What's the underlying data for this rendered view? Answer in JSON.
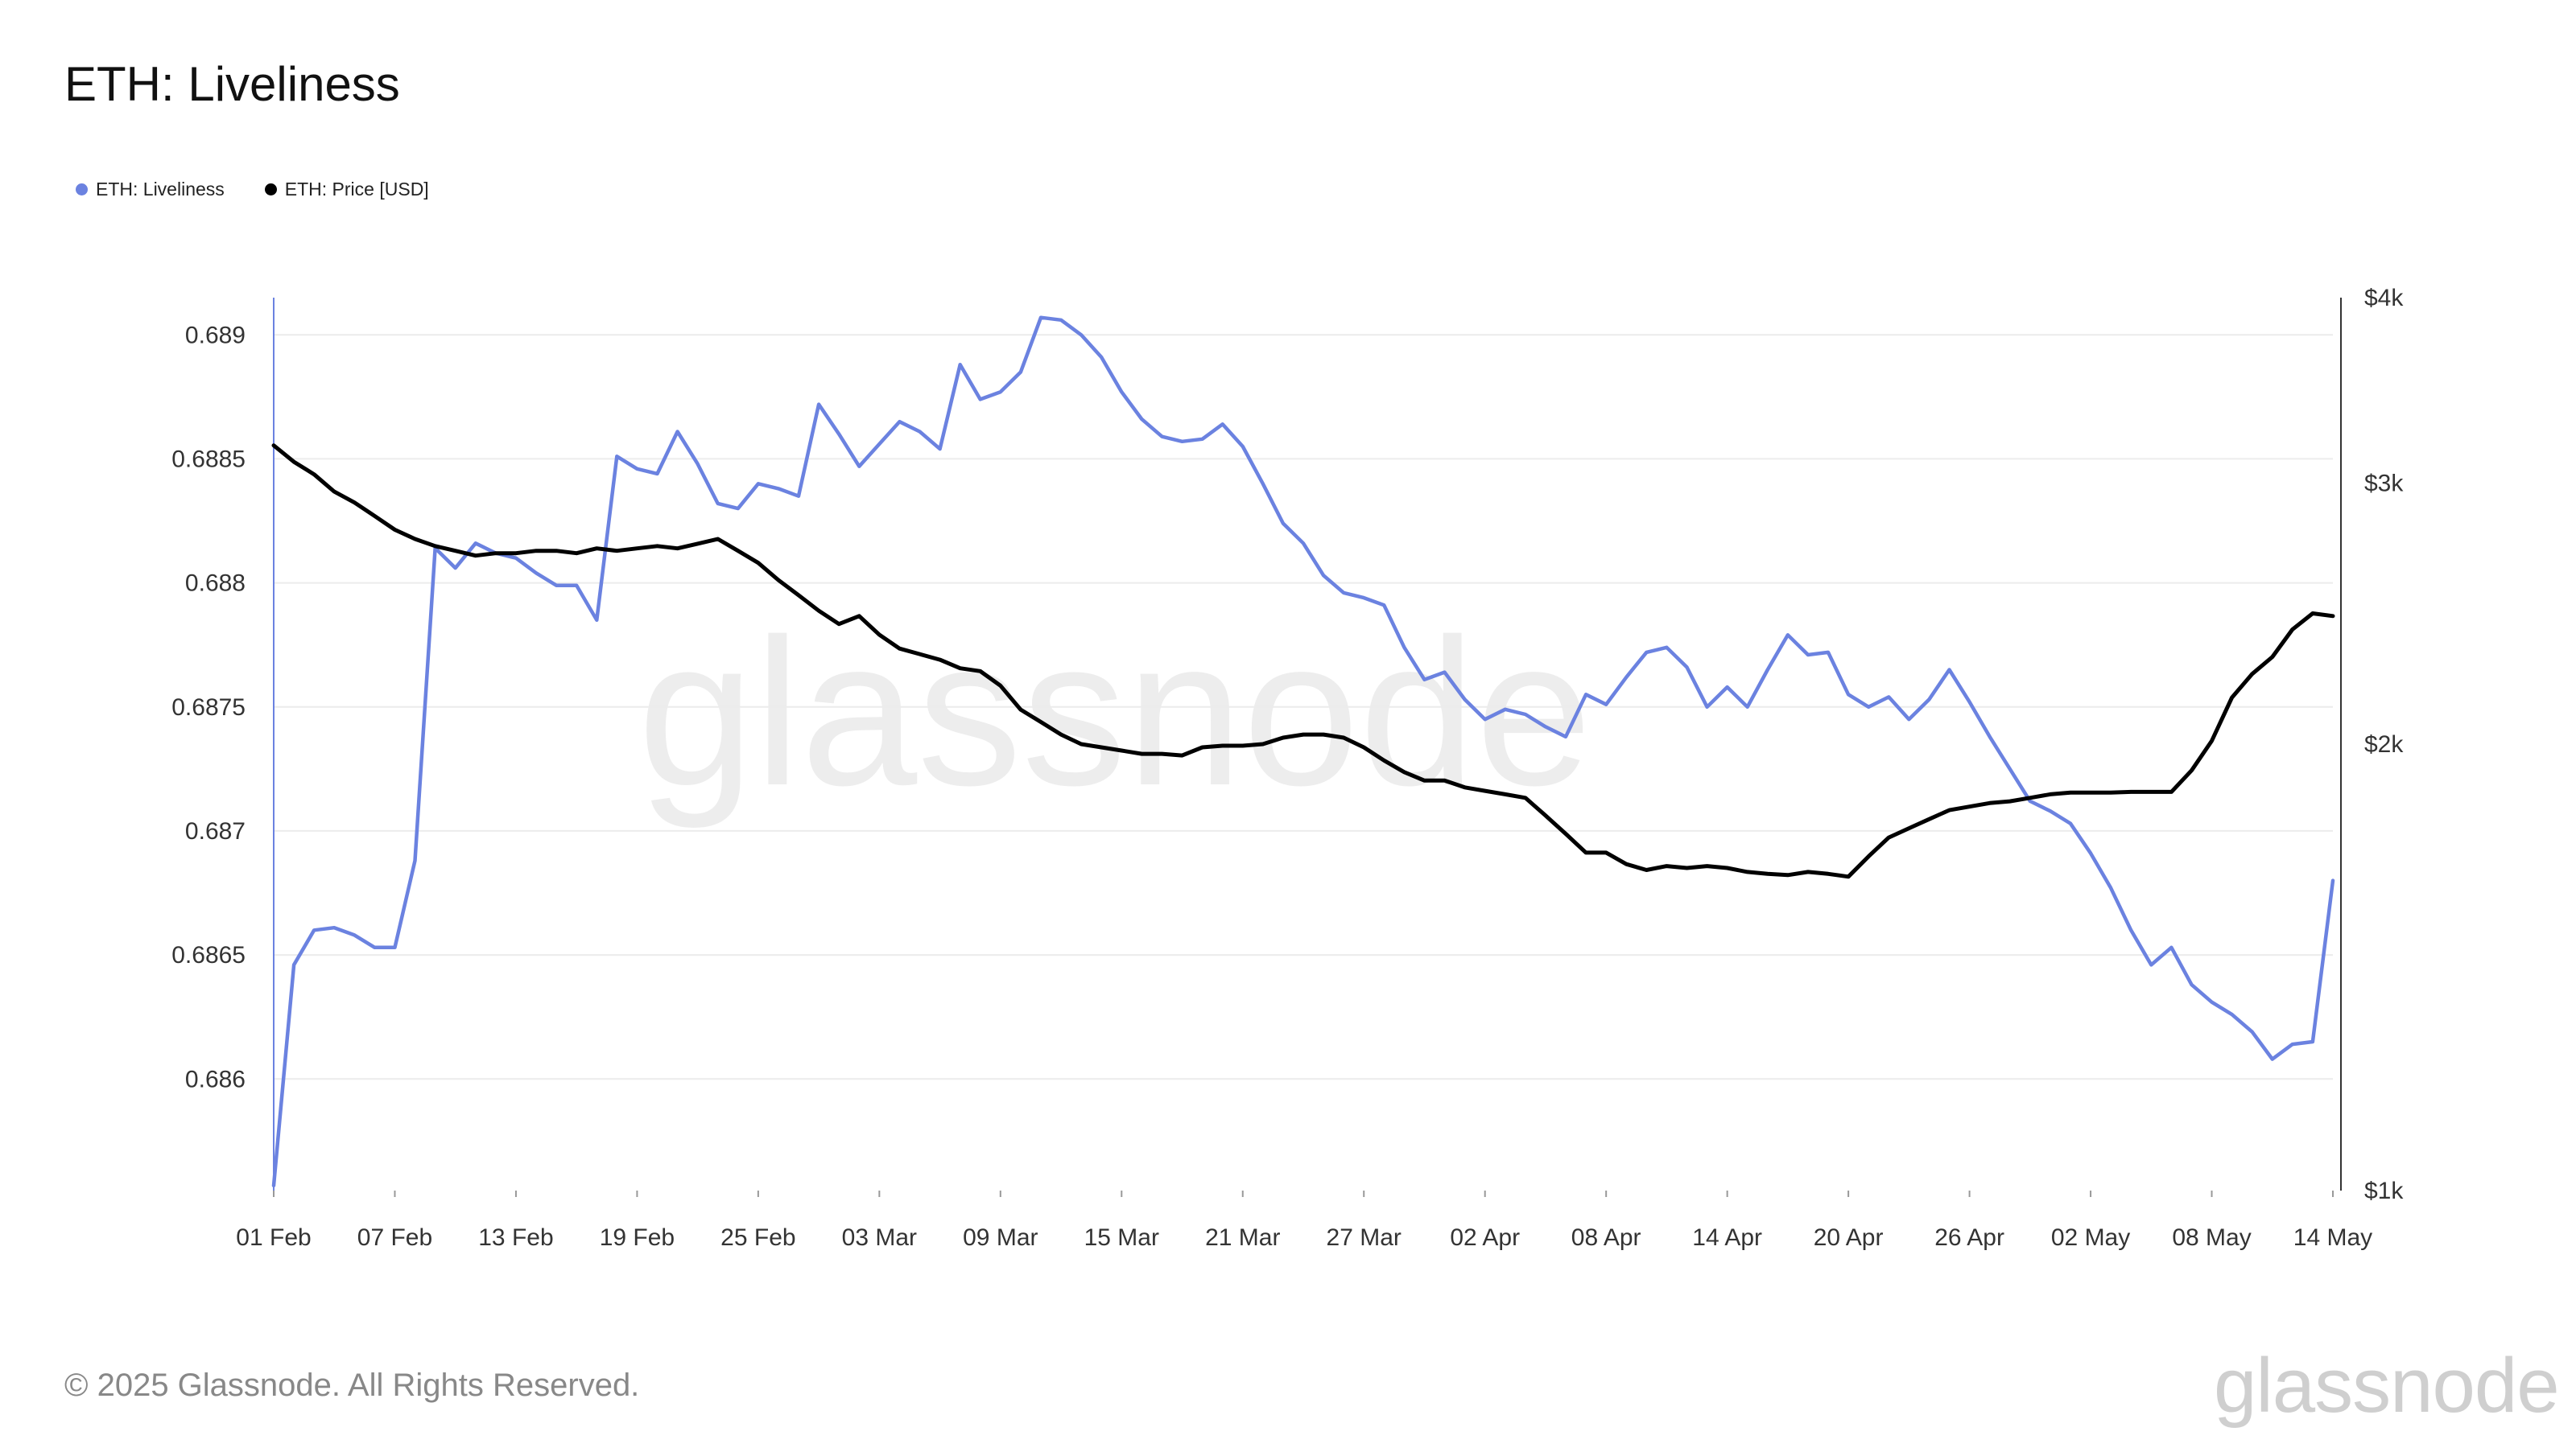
{
  "header": {
    "title": "ETH: Liveliness"
  },
  "legend": [
    {
      "label": "ETH: Liveliness",
      "color": "#6b82e0"
    },
    {
      "label": "ETH: Price [USD]",
      "color": "#000000"
    }
  ],
  "watermark": "glassnode",
  "footer": {
    "copyright": "© 2025 Glassnode. All Rights Reserved.",
    "logo": "glassnode"
  },
  "chart_data": {
    "type": "line",
    "title": "ETH: Liveliness",
    "x_tick_labels": [
      "01 Feb",
      "07 Feb",
      "13 Feb",
      "19 Feb",
      "25 Feb",
      "03 Mar",
      "09 Mar",
      "15 Mar",
      "21 Mar",
      "27 Mar",
      "02 Apr",
      "08 Apr",
      "14 Apr",
      "20 Apr",
      "26 Apr",
      "02 May",
      "08 May",
      "14 May"
    ],
    "x_range_days": [
      0,
      102
    ],
    "y_left": {
      "range": [
        0.68555,
        0.68915
      ],
      "ticks": [
        0.686,
        0.6865,
        0.687,
        0.6875,
        0.688,
        0.6885,
        0.689
      ],
      "tick_labels": [
        "0.686",
        "0.6865",
        "0.687",
        "0.6875",
        "0.688",
        "0.6885",
        "0.689"
      ]
    },
    "y_right": {
      "scale": "log",
      "range": [
        1000,
        4000
      ],
      "ticks": [
        1000,
        2000,
        3000,
        4000
      ],
      "tick_labels": [
        "$1k",
        "$2k",
        "$3k",
        "$4k"
      ]
    },
    "grid": true,
    "legend_position": "top-left",
    "series": [
      {
        "name": "ETH: Liveliness",
        "color": "#6b82e0",
        "axis": "left",
        "points": [
          [
            0,
            0.68557
          ],
          [
            1,
            0.68646
          ],
          [
            2,
            0.6866
          ],
          [
            3,
            0.68661
          ],
          [
            4,
            0.68658
          ],
          [
            5,
            0.68653
          ],
          [
            6,
            0.68653
          ],
          [
            7,
            0.68688
          ],
          [
            8,
            0.68814
          ],
          [
            9,
            0.68806
          ],
          [
            10,
            0.68816
          ],
          [
            11,
            0.68812
          ],
          [
            12,
            0.6881
          ],
          [
            13,
            0.68804
          ],
          [
            14,
            0.68799
          ],
          [
            15,
            0.68799
          ],
          [
            16,
            0.68785
          ],
          [
            17,
            0.68851
          ],
          [
            18,
            0.68846
          ],
          [
            19,
            0.68844
          ],
          [
            20,
            0.68861
          ],
          [
            21,
            0.68848
          ],
          [
            22,
            0.68832
          ],
          [
            23,
            0.6883
          ],
          [
            24,
            0.6884
          ],
          [
            25,
            0.68838
          ],
          [
            26,
            0.68835
          ],
          [
            27,
            0.68872
          ],
          [
            28,
            0.6886
          ],
          [
            29,
            0.68847
          ],
          [
            30,
            0.68856
          ],
          [
            31,
            0.68865
          ],
          [
            32,
            0.68861
          ],
          [
            33,
            0.68854
          ],
          [
            34,
            0.68888
          ],
          [
            35,
            0.68874
          ],
          [
            36,
            0.68877
          ],
          [
            37,
            0.68885
          ],
          [
            38,
            0.68907
          ],
          [
            39,
            0.68906
          ],
          [
            40,
            0.689
          ],
          [
            41,
            0.68891
          ],
          [
            42,
            0.68877
          ],
          [
            43,
            0.68866
          ],
          [
            44,
            0.68859
          ],
          [
            45,
            0.68857
          ],
          [
            46,
            0.68858
          ],
          [
            47,
            0.68864
          ],
          [
            48,
            0.68855
          ],
          [
            49,
            0.6884
          ],
          [
            50,
            0.68824
          ],
          [
            51,
            0.68816
          ],
          [
            52,
            0.68803
          ],
          [
            53,
            0.68796
          ],
          [
            54,
            0.68794
          ],
          [
            55,
            0.68791
          ],
          [
            56,
            0.68774
          ],
          [
            57,
            0.68761
          ],
          [
            58,
            0.68764
          ],
          [
            59,
            0.68753
          ],
          [
            60,
            0.68745
          ],
          [
            61,
            0.68749
          ],
          [
            62,
            0.68747
          ],
          [
            63,
            0.68742
          ],
          [
            64,
            0.68738
          ],
          [
            65,
            0.68755
          ],
          [
            66,
            0.68751
          ],
          [
            67,
            0.68762
          ],
          [
            68,
            0.68772
          ],
          [
            69,
            0.68774
          ],
          [
            70,
            0.68766
          ],
          [
            71,
            0.6875
          ],
          [
            72,
            0.68758
          ],
          [
            73,
            0.6875
          ],
          [
            74,
            0.68765
          ],
          [
            75,
            0.68779
          ],
          [
            76,
            0.68771
          ],
          [
            77,
            0.68772
          ],
          [
            78,
            0.68755
          ],
          [
            79,
            0.6875
          ],
          [
            80,
            0.68754
          ],
          [
            81,
            0.68745
          ],
          [
            82,
            0.68753
          ],
          [
            83,
            0.68765
          ],
          [
            84,
            0.68752
          ],
          [
            85,
            0.68738
          ],
          [
            86,
            0.68725
          ],
          [
            87,
            0.68712
          ],
          [
            88,
            0.68708
          ],
          [
            89,
            0.68703
          ],
          [
            90,
            0.68691
          ],
          [
            91,
            0.68677
          ],
          [
            92,
            0.6866
          ],
          [
            93,
            0.68646
          ],
          [
            94,
            0.68653
          ],
          [
            95,
            0.68638
          ],
          [
            96,
            0.68631
          ],
          [
            97,
            0.68626
          ],
          [
            98,
            0.68619
          ],
          [
            99,
            0.68608
          ],
          [
            100,
            0.68614
          ],
          [
            101,
            0.68615
          ],
          [
            102,
            0.6868
          ]
        ]
      },
      {
        "name": "ETH: Price [USD]",
        "color": "#000000",
        "axis": "right",
        "points": [
          [
            0,
            3180
          ],
          [
            1,
            3100
          ],
          [
            2,
            3040
          ],
          [
            3,
            2960
          ],
          [
            4,
            2910
          ],
          [
            5,
            2850
          ],
          [
            6,
            2790
          ],
          [
            7,
            2750
          ],
          [
            8,
            2720
          ],
          [
            9,
            2700
          ],
          [
            10,
            2680
          ],
          [
            11,
            2690
          ],
          [
            12,
            2690
          ],
          [
            13,
            2700
          ],
          [
            14,
            2700
          ],
          [
            15,
            2690
          ],
          [
            16,
            2710
          ],
          [
            17,
            2700
          ],
          [
            18,
            2710
          ],
          [
            19,
            2720
          ],
          [
            20,
            2710
          ],
          [
            21,
            2730
          ],
          [
            22,
            2750
          ],
          [
            23,
            2700
          ],
          [
            24,
            2650
          ],
          [
            25,
            2580
          ],
          [
            26,
            2520
          ],
          [
            27,
            2460
          ],
          [
            28,
            2410
          ],
          [
            29,
            2440
          ],
          [
            30,
            2370
          ],
          [
            31,
            2320
          ],
          [
            32,
            2300
          ],
          [
            33,
            2280
          ],
          [
            34,
            2250
          ],
          [
            35,
            2240
          ],
          [
            36,
            2190
          ],
          [
            37,
            2110
          ],
          [
            38,
            2070
          ],
          [
            39,
            2030
          ],
          [
            40,
            2000
          ],
          [
            41,
            1990
          ],
          [
            42,
            1980
          ],
          [
            43,
            1970
          ],
          [
            44,
            1970
          ],
          [
            45,
            1965
          ],
          [
            46,
            1990
          ],
          [
            47,
            1995
          ],
          [
            48,
            1995
          ],
          [
            49,
            2000
          ],
          [
            50,
            2020
          ],
          [
            51,
            2030
          ],
          [
            52,
            2030
          ],
          [
            53,
            2020
          ],
          [
            54,
            1990
          ],
          [
            55,
            1950
          ],
          [
            56,
            1915
          ],
          [
            57,
            1890
          ],
          [
            58,
            1890
          ],
          [
            59,
            1870
          ],
          [
            60,
            1860
          ],
          [
            61,
            1850
          ],
          [
            62,
            1840
          ],
          [
            63,
            1790
          ],
          [
            64,
            1740
          ],
          [
            65,
            1690
          ],
          [
            66,
            1690
          ],
          [
            67,
            1660
          ],
          [
            68,
            1645
          ],
          [
            69,
            1655
          ],
          [
            70,
            1650
          ],
          [
            71,
            1655
          ],
          [
            72,
            1650
          ],
          [
            73,
            1640
          ],
          [
            74,
            1635
          ],
          [
            75,
            1632
          ],
          [
            76,
            1640
          ],
          [
            77,
            1635
          ],
          [
            78,
            1628
          ],
          [
            79,
            1680
          ],
          [
            80,
            1730
          ],
          [
            81,
            1755
          ],
          [
            82,
            1780
          ],
          [
            83,
            1805
          ],
          [
            84,
            1815
          ],
          [
            85,
            1825
          ],
          [
            86,
            1830
          ],
          [
            87,
            1840
          ],
          [
            88,
            1850
          ],
          [
            89,
            1855
          ],
          [
            90,
            1855
          ],
          [
            91,
            1855
          ],
          [
            92,
            1857
          ],
          [
            93,
            1857
          ],
          [
            94,
            1857
          ],
          [
            95,
            1920
          ],
          [
            96,
            2010
          ],
          [
            97,
            2150
          ],
          [
            98,
            2230
          ],
          [
            99,
            2290
          ],
          [
            100,
            2390
          ],
          [
            101,
            2450
          ],
          [
            102,
            2440
          ]
        ]
      }
    ]
  }
}
